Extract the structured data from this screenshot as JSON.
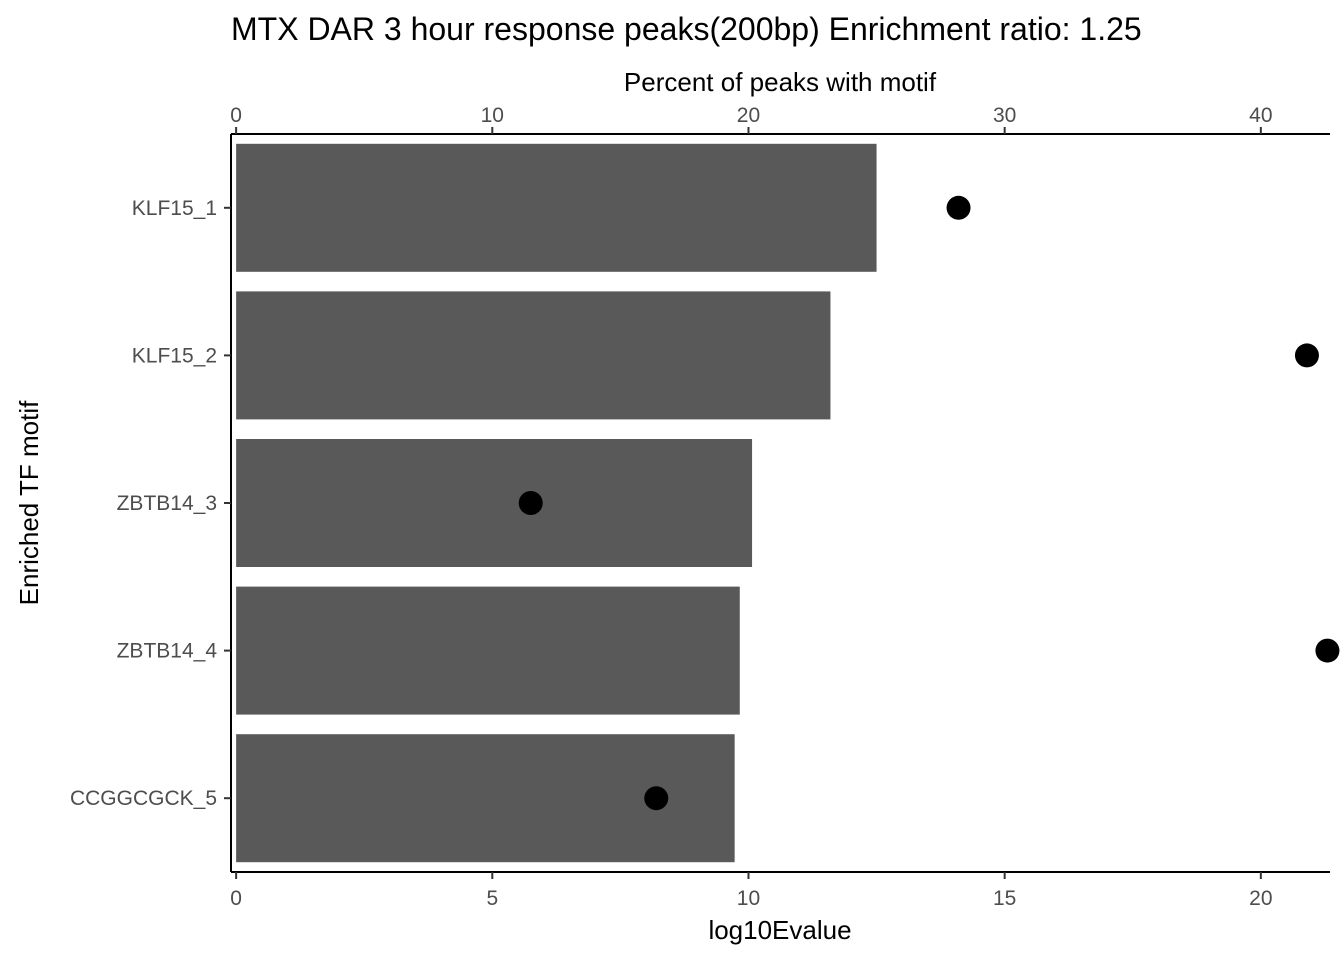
{
  "chart_data": {
    "type": "bar",
    "title": "MTX DAR 3 hour response peaks(200bp) Enrichment ratio: 1.25",
    "xlabel_bottom": "log10Evalue",
    "xlabel_top": "Percent of peaks with motif",
    "ylabel": "Enriched TF motif",
    "categories": [
      "KLF15_1",
      "KLF15_2",
      "ZBTB14_3",
      "ZBTB14_4",
      "CCGGCGCK_5"
    ],
    "bar_series": {
      "name": "log10Evalue",
      "axis": "bottom",
      "values": [
        12.5,
        11.6,
        10.07,
        9.83,
        9.73
      ]
    },
    "point_series": {
      "name": "Percent of peaks with motif",
      "axis": "top",
      "values": [
        28.2,
        41.8,
        11.5,
        42.6,
        16.4
      ]
    },
    "bottom_axis": {
      "lim": [
        -0.1,
        21.35
      ],
      "ticks": [
        0,
        5,
        10,
        15,
        20
      ]
    },
    "top_axis": {
      "lim": [
        -0.2,
        42.7
      ],
      "ticks": [
        0,
        10,
        20,
        30,
        40
      ]
    },
    "grid": false,
    "legend": "none",
    "colors": {
      "bar": "#595959",
      "point": "#000000",
      "axis": "#000000",
      "tick_text": "#4d4d4d"
    }
  }
}
